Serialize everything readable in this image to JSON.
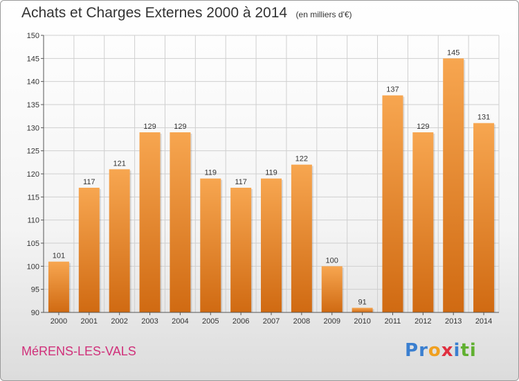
{
  "header": {
    "title": "Achats et Charges Externes 2000 à 2014",
    "unit": "(en milliers d'€)"
  },
  "footer": {
    "commune": "MéRENS-LES-VALS",
    "logo_letters": [
      {
        "char": "P",
        "color": "#3a7fd0"
      },
      {
        "char": "r",
        "color": "#3a7fd0"
      },
      {
        "char": "o",
        "color": "#f0a020"
      },
      {
        "char": "x",
        "color": "#e03040"
      },
      {
        "char": "i",
        "color": "#3a7fd0"
      },
      {
        "char": "t",
        "color": "#60b030"
      },
      {
        "char": "i",
        "color": "#60b030"
      }
    ]
  },
  "colors": {
    "bar_light": "#f7a650",
    "bar_dark": "#d06a12",
    "grid": "#cfcfcf",
    "axis_text": "#333333"
  },
  "chart_data": {
    "type": "bar",
    "categories": [
      "2000",
      "2001",
      "2002",
      "2003",
      "2004",
      "2005",
      "2006",
      "2007",
      "2008",
      "2009",
      "2010",
      "2011",
      "2012",
      "2013",
      "2014"
    ],
    "values": [
      101,
      117,
      121,
      129,
      129,
      119,
      117,
      119,
      122,
      100,
      91,
      137,
      129,
      145,
      131
    ],
    "data_labels": [
      "101",
      "117",
      "121",
      "129",
      "129",
      "119",
      "117",
      "119",
      "122",
      "100",
      "91",
      "137",
      "129",
      "145",
      "131"
    ],
    "yticks": [
      90,
      95,
      100,
      105,
      110,
      115,
      120,
      125,
      130,
      135,
      140,
      145,
      150
    ],
    "ylim": [
      90,
      150
    ],
    "grid": true
  }
}
